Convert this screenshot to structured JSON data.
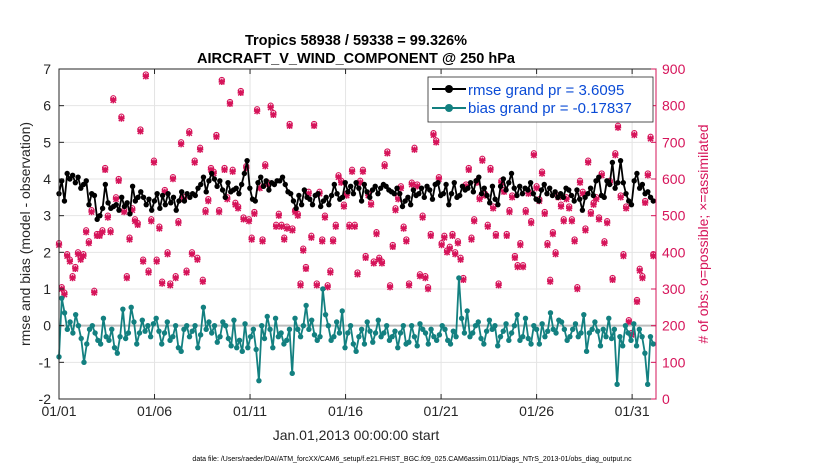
{
  "chart_data": {
    "type": "line",
    "title_line1": "Tropics 58938 / 59338 = 99.326%",
    "title_line2": "AIRCRAFT_V_WIND_COMPONENT @ 250 hPa",
    "xlabel": "Jan.01,2013 00:00:00 start",
    "ylabel_left": "rmse and bias (model - observation)",
    "ylabel_right": "# of obs: o=possible; ×=assimilated",
    "footer": "data file: /Users/raeder/DAI/ATM_forcXX/CAM6_setup/f.e21.FHIST_BGC.f09_025.CAM6assim.011/Diags_NTrS_2013-01/obs_diag_output.nc",
    "xlim": [
      0,
      31.25
    ],
    "ylim_left": [
      -2,
      7
    ],
    "ylim_right": [
      0,
      900
    ],
    "xtick_labels": [
      "01/01",
      "01/06",
      "01/11",
      "01/16",
      "01/21",
      "01/26",
      "01/31"
    ],
    "xtick_values": [
      0,
      5,
      10,
      15,
      20,
      25,
      30
    ],
    "ytick_left": [
      -2,
      -1,
      0,
      1,
      2,
      3,
      4,
      5,
      6,
      7
    ],
    "ytick_right": [
      0,
      100,
      200,
      300,
      400,
      500,
      600,
      700,
      800,
      900
    ],
    "grid": true,
    "legend_position": "top-right",
    "colors": {
      "rmse": "#000000",
      "bias": "#138080",
      "obs": "#d6145a",
      "legend_text": "#0a4bd6",
      "zero_line": "#bdbdbd",
      "grid": "#e4e4e4"
    },
    "series": [
      {
        "name": "rmse grand pr = 3.6095",
        "axis": "left",
        "values": [
          3.6,
          3.95,
          3.4,
          4.15,
          4.0,
          4.1,
          3.9,
          4.05,
          3.75,
          3.85,
          3.95,
          3.3,
          3.6,
          3.55,
          2.9,
          3.0,
          3.2,
          3.85,
          3.35,
          3.2,
          3.25,
          3.3,
          3.15,
          3.5,
          3.25,
          3.35,
          3.05,
          3.8,
          3.4,
          3.5,
          3.65,
          3.5,
          3.3,
          3.45,
          3.15,
          3.4,
          3.6,
          3.2,
          3.55,
          3.3,
          3.6,
          3.35,
          3.5,
          3.15,
          3.4,
          3.65,
          3.4,
          3.6,
          3.5,
          3.6,
          3.55,
          3.75,
          3.85,
          4.05,
          3.65,
          3.95,
          4.15,
          4.0,
          3.8,
          3.95,
          3.7,
          3.5,
          3.9,
          3.65,
          3.7,
          3.75,
          3.6,
          3.85,
          4.15,
          4.5,
          3.75,
          3.45,
          3.4,
          3.9,
          4.05,
          3.8,
          3.95,
          3.7,
          3.9,
          3.85,
          3.95,
          3.95,
          4.05,
          3.85,
          3.65,
          3.6,
          3.4,
          3.2,
          3.55,
          3.3,
          3.7,
          3.5,
          3.45,
          3.3,
          3.55,
          3.6,
          3.25,
          3.4,
          3.5,
          3.3,
          3.55,
          3.85,
          3.6,
          3.45,
          3.5,
          3.9,
          3.65,
          3.8,
          3.6,
          3.9,
          3.75,
          3.4,
          3.85,
          3.65,
          3.5,
          3.7,
          3.8,
          3.6,
          3.75,
          3.85,
          3.8,
          3.7,
          3.65,
          3.6,
          3.75,
          3.6,
          3.25,
          3.4,
          3.5,
          3.3,
          3.7,
          3.55,
          3.6,
          3.75,
          3.5,
          3.8,
          3.7,
          3.45,
          3.85,
          3.9,
          3.55,
          3.6,
          3.85,
          3.3,
          3.6,
          3.9,
          3.5,
          3.55,
          3.8,
          3.7,
          3.75,
          3.9,
          3.65,
          3.95,
          4.05,
          3.6,
          3.75,
          3.55,
          3.35,
          3.8,
          3.45,
          3.3,
          3.8,
          4.0,
          3.7,
          3.9,
          4.15,
          3.75,
          3.55,
          3.8,
          3.6,
          3.75,
          3.7,
          3.9,
          3.6,
          3.45,
          3.4,
          3.7,
          3.85,
          3.6,
          3.75,
          3.55,
          3.65,
          3.5,
          3.6,
          3.5,
          3.75,
          3.7,
          3.55,
          3.4,
          3.7,
          3.45,
          3.15,
          3.5,
          3.6,
          3.75,
          3.55,
          3.95,
          4.05,
          3.55,
          3.5,
          3.95,
          3.85,
          4.45,
          3.75,
          3.9,
          4.5,
          3.9,
          3.6,
          3.4,
          3.3,
          3.95,
          4.15,
          3.75,
          3.85,
          3.6,
          3.65,
          3.5,
          3.4
        ]
      },
      {
        "name": "bias grand pr = -0.17837",
        "axis": "left",
        "values": [
          -0.85,
          0.75,
          0.35,
          -0.1,
          0.1,
          -0.2,
          0.3,
          0.0,
          -0.35,
          -1.0,
          -0.5,
          -0.1,
          0.0,
          -0.2,
          -0.4,
          -0.5,
          0.2,
          -0.3,
          -0.4,
          -0.1,
          -0.6,
          -0.75,
          -0.3,
          0.45,
          -0.35,
          -0.2,
          0.5,
          0.1,
          -0.5,
          -0.2,
          0.15,
          -0.15,
          0.0,
          -0.3,
          0.05,
          0.2,
          -0.15,
          -0.5,
          -0.2,
          0.1,
          -0.4,
          -0.3,
          0.0,
          -0.6,
          -0.7,
          -0.1,
          0.0,
          -0.3,
          -0.15,
          0.0,
          -0.6,
          -0.25,
          0.5,
          -0.1,
          0.1,
          -0.2,
          0.0,
          -0.45,
          -0.3,
          0.1,
          0.0,
          -0.35,
          -0.55,
          0.15,
          -0.6,
          -0.4,
          -0.7,
          0.05,
          -0.6,
          -0.3,
          -0.1,
          -0.65,
          -1.5,
          0.0,
          -0.35,
          0.25,
          -0.1,
          -0.6,
          0.2,
          -0.3,
          -0.2,
          -0.5,
          -0.4,
          -0.1,
          -1.3,
          0.2,
          -0.1,
          -0.3,
          0.0,
          0.55,
          -0.1,
          0.15,
          -0.25,
          -0.4,
          -0.3,
          1.0,
          0.3,
          0.0,
          -0.4,
          -0.3,
          0.1,
          -0.2,
          0.4,
          -0.6,
          -0.2,
          0.0,
          -0.5,
          -0.7,
          -0.3,
          -0.1,
          -0.5,
          0.1,
          -0.15,
          -0.45,
          -0.2,
          0.15,
          -0.3,
          -0.2,
          0.0,
          -0.4,
          -0.3,
          -0.15,
          -0.6,
          -0.2,
          0.0,
          -0.5,
          -0.45,
          0.0,
          -0.3,
          -0.55,
          0.05,
          -0.1,
          -0.2,
          -0.5,
          -0.1,
          -0.3,
          -0.4,
          -0.25,
          0.0,
          -0.1,
          -0.4,
          -0.5,
          -0.15,
          -0.3,
          1.3,
          0.2,
          -0.2,
          0.4,
          -0.3,
          -0.2,
          0.0,
          0.1,
          -0.35,
          -0.5,
          -0.15,
          0.15,
          -0.1,
          0.0,
          -0.55,
          -0.3,
          -0.15,
          0.05,
          -0.4,
          -0.2,
          0.0,
          0.3,
          -0.4,
          -0.3,
          0.2,
          -0.35,
          -0.5,
          0.0,
          -0.1,
          -0.5,
          0.05,
          -0.3,
          -0.15,
          0.35,
          -0.1,
          -0.2,
          0.15,
          0.1,
          -0.1,
          -0.4,
          -0.3,
          -0.1,
          0.05,
          -0.3,
          -0.2,
          0.3,
          -0.7,
          -0.2,
          -0.1,
          0.1,
          -0.15,
          -0.55,
          -0.1,
          -0.3,
          0.2,
          -0.35,
          -0.1,
          -1.6,
          -0.3,
          -0.55,
          0.0,
          -0.2,
          -0.4,
          0.05,
          -0.55,
          -0.1,
          -0.3,
          -0.75,
          -1.6,
          -0.3,
          -0.5
        ]
      },
      {
        "name": "# obs assimilated",
        "axis": "right",
        "values": [
          420,
          300,
          285,
          390,
          375,
          330,
          355,
          395,
          380,
          390,
          455,
          425,
          510,
          290,
          445,
          445,
          455,
          625,
          495,
          455,
          815,
          545,
          595,
          765,
          510,
          330,
          435,
          515,
          485,
          475,
          730,
          375,
          880,
          345,
          485,
          645,
          375,
          465,
          315,
          565,
          395,
          310,
          600,
          330,
          480,
          695,
          545,
          345,
          725,
          395,
          645,
          380,
          680,
          320,
          510,
          540,
          625,
          615,
          715,
          510,
          865,
          625,
          545,
          805,
          620,
          530,
          520,
          835,
          490,
          630,
          485,
          435,
          505,
          785,
          575,
          430,
          635,
          585,
          795,
          775,
          470,
          500,
          470,
          435,
          465,
          745,
          460,
          510,
          500,
          310,
          405,
          355,
          560,
          440,
          745,
          310,
          560,
          430,
          495,
          305,
          345,
          430,
          470,
          605,
          590,
          525,
          555,
          470,
          620,
          470,
          340,
          590,
          620,
          385,
          555,
          530,
          370,
          450,
          380,
          370,
          635,
          670,
          305,
          415,
          515,
          545,
          575,
          465,
          430,
          310,
          585,
          680,
          580,
          335,
          495,
          330,
          300,
          445,
          720,
          700,
          600,
          420,
          440,
          400,
          410,
          445,
          395,
          425,
          380,
          325,
          580,
          625,
          435,
          485,
          590,
          545,
          650,
          555,
          470,
          625,
          520,
          445,
          310,
          590,
          565,
          445,
          510,
          550,
          385,
          360,
          420,
          360,
          510,
          560,
          480,
          665,
          575,
          540,
          615,
          505,
          420,
          320,
          450,
          395,
          550,
          525,
          485,
          545,
          520,
          485,
          430,
          300,
          590,
          560,
          460,
          645,
          505,
          530,
          545,
          490,
          610,
          425,
          480,
          590,
          325,
          665,
          740,
          550,
          390,
          520,
          210,
          175,
          720,
          265,
          350,
          330,
          535,
          610,
          710,
          390
        ]
      },
      {
        "name": "# obs possible",
        "axis": "right",
        "values": [
          425,
          305,
          290,
          395,
          380,
          335,
          360,
          400,
          385,
          395,
          460,
          430,
          515,
          295,
          450,
          450,
          460,
          630,
          500,
          460,
          820,
          550,
          600,
          770,
          515,
          335,
          440,
          520,
          490,
          480,
          735,
          380,
          885,
          350,
          490,
          650,
          380,
          470,
          320,
          570,
          400,
          315,
          605,
          335,
          485,
          700,
          550,
          350,
          730,
          400,
          650,
          385,
          685,
          325,
          515,
          545,
          630,
          620,
          720,
          515,
          870,
          630,
          550,
          810,
          625,
          535,
          525,
          840,
          495,
          635,
          490,
          440,
          510,
          790,
          580,
          435,
          640,
          590,
          800,
          780,
          475,
          505,
          475,
          440,
          470,
          750,
          465,
          515,
          505,
          315,
          410,
          360,
          565,
          445,
          750,
          315,
          565,
          435,
          500,
          310,
          350,
          435,
          475,
          610,
          595,
          530,
          560,
          475,
          625,
          475,
          345,
          595,
          625,
          390,
          560,
          535,
          375,
          455,
          385,
          375,
          640,
          675,
          310,
          420,
          520,
          550,
          580,
          470,
          435,
          315,
          590,
          685,
          585,
          340,
          500,
          335,
          305,
          450,
          725,
          705,
          605,
          425,
          445,
          405,
          415,
          450,
          400,
          430,
          385,
          330,
          585,
          630,
          440,
          490,
          595,
          550,
          655,
          560,
          475,
          630,
          525,
          450,
          315,
          595,
          570,
          450,
          515,
          555,
          390,
          365,
          425,
          365,
          515,
          565,
          485,
          670,
          580,
          545,
          620,
          510,
          425,
          325,
          455,
          400,
          555,
          530,
          490,
          550,
          525,
          490,
          435,
          305,
          595,
          565,
          465,
          650,
          510,
          535,
          550,
          495,
          615,
          430,
          485,
          595,
          330,
          670,
          745,
          555,
          395,
          525,
          215,
          180,
          725,
          270,
          355,
          335,
          540,
          615,
          715,
          395
        ]
      }
    ]
  }
}
